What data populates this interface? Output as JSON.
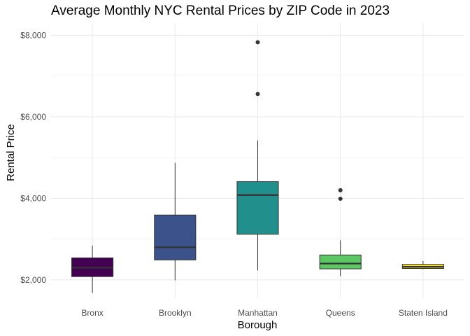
{
  "chart_data": {
    "type": "box",
    "title": "Average Monthly NYC Rental Prices by ZIP Code in 2023",
    "xlabel": "Borough",
    "ylabel": "Rental Price",
    "categories": [
      "Bronx",
      "Brooklyn",
      "Manhattan",
      "Queens",
      "Staten Island"
    ],
    "y_ticks": [
      2000,
      4000,
      6000,
      8000
    ],
    "y_tick_labels": [
      "$2,000",
      "$4,000",
      "$6,000",
      "$8,000"
    ],
    "ylim": [
      1550,
      8300
    ],
    "grid": true,
    "legend": "none",
    "boxes": [
      {
        "category": "Bronx",
        "whisker_low": 1680,
        "q1": 2080,
        "median": 2300,
        "q3": 2540,
        "whisker_high": 2840,
        "outliers": [],
        "color": "#440154"
      },
      {
        "category": "Brooklyn",
        "whisker_low": 1990,
        "q1": 2490,
        "median": 2800,
        "q3": 3590,
        "whisker_high": 4870,
        "outliers": [],
        "color": "#3B528B"
      },
      {
        "category": "Manhattan",
        "whisker_low": 2230,
        "q1": 3120,
        "median": 4080,
        "q3": 4410,
        "whisker_high": 5420,
        "outliers": [
          6560,
          7830
        ],
        "color": "#21908C"
      },
      {
        "category": "Queens",
        "whisker_low": 2090,
        "q1": 2270,
        "median": 2400,
        "q3": 2610,
        "whisker_high": 2970,
        "outliers": [
          3990,
          4200
        ],
        "color": "#5DC863"
      },
      {
        "category": "Staten Island",
        "whisker_low": 2260,
        "q1": 2280,
        "median": 2320,
        "q3": 2380,
        "whisker_high": 2460,
        "outliers": [],
        "color": "#FDE725"
      }
    ]
  }
}
